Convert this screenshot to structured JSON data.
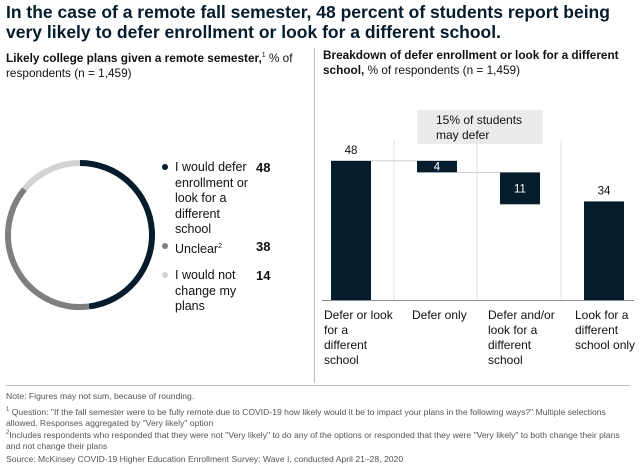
{
  "title": "In the case of a remote fall semester, 48 percent of students report being very likely to defer enrollment or look for a different school.",
  "left_panel": {
    "subtitle_bold": "Likely college plans given a remote semester,",
    "subtitle_sup": "1",
    "subtitle_rest": " % of respondents (n = 1,459)"
  },
  "right_panel": {
    "subtitle_bold": "Breakdown of defer enrollment or look for a different school,",
    "subtitle_rest": " % of respondents (n = 1,459)",
    "callout": "15% of students may defer"
  },
  "notes": {
    "rounding": "Note: Figures may not sum, because of rounding.",
    "fn1_num": "1",
    "fn1": "Question: \"If the fall semester were to be fully remote due to COVID-19 how likely would it be to impact your plans in the following ways?\" Multiple selections allowed. Responses aggregated by \"Very likely\" option",
    "fn2_num": "2",
    "fn2": "Includes respondents who responded that they were not \"Very likely\" to do any of the options or responded that they were \"Very likely\" to both change their plans and not change their plans",
    "source": "Source: McKinsey COVID-19 Higher Education Enrollment Survey: Wave I, conducted April 21–28, 2020"
  },
  "colors": {
    "dark": "#051c2c",
    "mid": "#7f7f7f",
    "light": "#d3d3d3",
    "callout_bg": "#ebebeb"
  },
  "chart_data": [
    {
      "type": "pie",
      "style": "donut",
      "categories": [
        "I would defer enrollment or look for a different school",
        "Unclear",
        "I would not change my plans"
      ],
      "values": [
        48,
        38,
        14
      ],
      "label_sup": [
        "",
        "2",
        ""
      ]
    },
    {
      "type": "bar",
      "style": "waterfall",
      "categories": [
        "Defer or look for a different school",
        "Defer only",
        "Defer and/or look for a different school",
        "Look for a different school only"
      ],
      "values": [
        48,
        4,
        11,
        34
      ],
      "label_text": [
        "48",
        "4",
        "11",
        "34"
      ]
    }
  ]
}
